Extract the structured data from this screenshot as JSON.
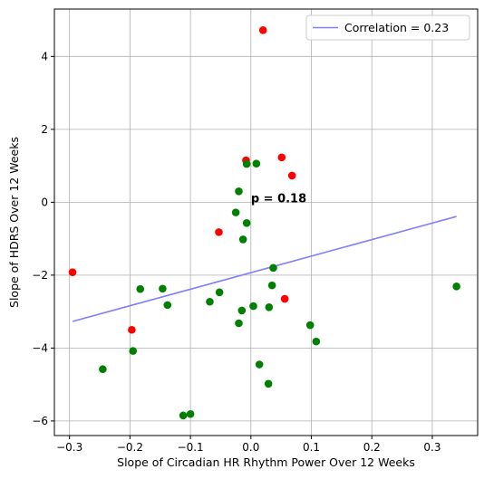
{
  "chart_data": {
    "type": "scatter",
    "title": "",
    "xlabel": "Slope of Circadian HR Rhythm Power Over 12 Weeks",
    "ylabel": "Slope of HDRS Over 12 Weeks",
    "xlim": [
      -0.325,
      0.375
    ],
    "ylim": [
      -6.4,
      5.3
    ],
    "xticks": [
      -0.3,
      -0.2,
      -0.1,
      0.0,
      0.1,
      0.2,
      0.3
    ],
    "xtick_labels": [
      "−0.3",
      "−0.2",
      "−0.1",
      "0.0",
      "0.1",
      "0.2",
      "0.3"
    ],
    "yticks": [
      -6,
      -4,
      -2,
      0,
      2,
      4
    ],
    "ytick_labels": [
      "−6",
      "−4",
      "−2",
      "0",
      "2",
      "4"
    ],
    "grid": true,
    "legend": {
      "position": "top-right",
      "entries": [
        "Correlation = 0.23"
      ]
    },
    "annotation": {
      "text": "p = 0.18",
      "x": 0.0,
      "y": 0.0
    },
    "colors": {
      "red": "#ff0000",
      "green": "#008000",
      "line": "#8080ff"
    },
    "series": [
      {
        "color": "red",
        "points": [
          [
            0.02,
            4.72
          ],
          [
            -0.008,
            1.15
          ],
          [
            0.051,
            1.23
          ],
          [
            0.068,
            0.73
          ],
          [
            -0.053,
            -0.82
          ],
          [
            -0.295,
            -1.92
          ],
          [
            0.056,
            -2.65
          ],
          [
            -0.197,
            -3.5
          ]
        ]
      },
      {
        "color": "green",
        "points": [
          [
            0.009,
            1.06
          ],
          [
            -0.007,
            1.05
          ],
          [
            -0.02,
            0.3
          ],
          [
            -0.025,
            -0.28
          ],
          [
            -0.007,
            -0.57
          ],
          [
            -0.013,
            -1.02
          ],
          [
            0.037,
            -1.8
          ],
          [
            -0.183,
            -2.38
          ],
          [
            -0.146,
            -2.37
          ],
          [
            -0.052,
            -2.47
          ],
          [
            0.035,
            -2.28
          ],
          [
            0.34,
            -2.31
          ],
          [
            -0.138,
            -2.82
          ],
          [
            -0.068,
            -2.73
          ],
          [
            0.004,
            -2.85
          ],
          [
            0.03,
            -2.88
          ],
          [
            -0.015,
            -2.97
          ],
          [
            -0.02,
            -3.32
          ],
          [
            0.098,
            -3.37
          ],
          [
            0.108,
            -3.82
          ],
          [
            -0.195,
            -4.08
          ],
          [
            -0.245,
            -4.58
          ],
          [
            0.014,
            -4.45
          ],
          [
            0.029,
            -4.98
          ],
          [
            -0.112,
            -5.85
          ],
          [
            -0.1,
            -5.81
          ]
        ]
      },
      {
        "color": "line",
        "name": "Correlation = 0.23",
        "kind": "line",
        "x": [
          -0.295,
          0.34
        ],
        "y": [
          -3.27,
          -0.39
        ]
      }
    ]
  }
}
